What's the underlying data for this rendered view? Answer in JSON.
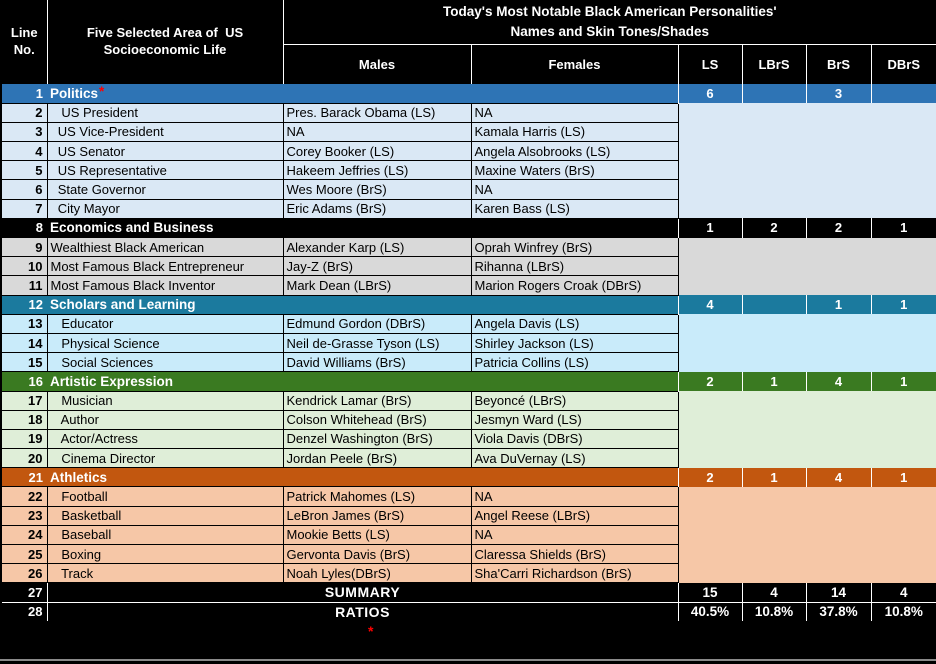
{
  "title": {
    "text": "Today's Most Notable Black American Personalities'\nNames and Skin Tones/Shades"
  },
  "columns": {
    "line_no": "Line\nNo.",
    "area": "Five Selected Area of  US\nSocioeconomic Life",
    "males": "Males",
    "females": "Females",
    "shades": [
      "LS",
      "LBrS",
      "BrS",
      "DBrS"
    ]
  },
  "colors": {
    "politics_header": "#2E74B5",
    "politics_light": "#DAE8F5",
    "economics_header": "#000000",
    "economics_light": "#D9D9D9",
    "scholars_header": "#1B7A9E",
    "scholars_light": "#C9EBFA",
    "artistic_header": "#3A7A21",
    "artistic_light": "#DFEED8",
    "athletics_header": "#C2570F",
    "athletics_light": "#F6C7A7",
    "accent_red": "#FF0000"
  },
  "sections": [
    {
      "line_no": 1,
      "name": "Politics",
      "asterisk": "*",
      "color_key": "politics",
      "counts": [
        "6",
        "",
        "3",
        ""
      ],
      "rows": [
        {
          "line_no": 2,
          "area": "   US President",
          "male": "Pres. Barack Obama (LS)",
          "female": "NA"
        },
        {
          "line_no": 3,
          "area": "  US Vice-President",
          "male": "NA",
          "female": "Kamala Harris (LS)"
        },
        {
          "line_no": 4,
          "area": "  US Senator",
          "male": "Corey Booker (LS)",
          "female": "Angela Alsobrooks (LS)"
        },
        {
          "line_no": 5,
          "area": "  US Representative",
          "male": "Hakeem Jeffries (LS)",
          "female": "Maxine Waters (BrS)"
        },
        {
          "line_no": 6,
          "area": "  State Governor",
          "male": "Wes Moore (BrS)",
          "female": "NA"
        },
        {
          "line_no": 7,
          "area": "  City Mayor",
          "male": "Eric Adams (BrS)",
          "female": "Karen Bass (LS)"
        }
      ]
    },
    {
      "line_no": 8,
      "name": "Economics and Business",
      "asterisk": "",
      "color_key": "economics",
      "counts": [
        "1",
        "2",
        "2",
        "1"
      ],
      "rows": [
        {
          "line_no": 9,
          "area": "Wealthiest Black American",
          "male": "Alexander Karp (LS)",
          "female": "Oprah Winfrey (BrS)"
        },
        {
          "line_no": 10,
          "area": "Most Famous Black Entrepreneur",
          "male": "Jay-Z (BrS)",
          "female": "Rihanna (LBrS)"
        },
        {
          "line_no": 11,
          "area": "Most Famous Black Inventor",
          "male": "Mark Dean (LBrS)",
          "female": "Marion Rogers Croak (DBrS)"
        }
      ]
    },
    {
      "line_no": 12,
      "name": "Scholars and Learning",
      "asterisk": "",
      "color_key": "scholars",
      "counts": [
        "4",
        "",
        "1",
        "1"
      ],
      "rows": [
        {
          "line_no": 13,
          "area": "   Educator",
          "male": "Edmund Gordon (DBrS)",
          "female": "Angela Davis (LS)"
        },
        {
          "line_no": 14,
          "area": "   Physical Science",
          "male": "Neil de-Grasse Tyson (LS)",
          "female": "Shirley Jackson (LS)"
        },
        {
          "line_no": 15,
          "area": "   Social Sciences",
          "male": "David Williams (BrS)",
          "female": "Patricia Collins (LS)"
        }
      ]
    },
    {
      "line_no": 16,
      "name": "Artistic Expression",
      "asterisk": "",
      "color_key": "artistic",
      "counts": [
        "2",
        "1",
        "4",
        "1"
      ],
      "rows": [
        {
          "line_no": 17,
          "area": "   Musician",
          "male": "Kendrick Lamar (BrS)",
          "female": "Beyoncé (LBrS)"
        },
        {
          "line_no": 18,
          "area": "   Author",
          "male": "Colson Whitehead (BrS)",
          "female": "Jesmyn Ward (LS)"
        },
        {
          "line_no": 19,
          "area": "   Actor/Actress",
          "male": "Denzel Washington (BrS)",
          "female": "Viola Davis (DBrS)"
        },
        {
          "line_no": 20,
          "area": "   Cinema Director",
          "male": "Jordan Peele (BrS)",
          "female": "Ava DuVernay (LS)"
        }
      ]
    },
    {
      "line_no": 21,
      "name": "Athletics",
      "asterisk": "",
      "color_key": "athletics",
      "counts": [
        "2",
        "1",
        "4",
        "1"
      ],
      "rows": [
        {
          "line_no": 22,
          "area": "   Football",
          "male": "Patrick Mahomes (LS)",
          "female": "NA"
        },
        {
          "line_no": 23,
          "area": "   Basketball",
          "male": "LeBron James (BrS)",
          "female": "Angel Reese (LBrS)"
        },
        {
          "line_no": 24,
          "area": "   Baseball",
          "male": "Mookie Betts (LS)",
          "female": "NA"
        },
        {
          "line_no": 25,
          "area": "   Boxing",
          "male": "Gervonta Davis (BrS)",
          "female": "Claressa Shields (BrS)"
        },
        {
          "line_no": 26,
          "area": "   Track",
          "male": "Noah Lyles(DBrS)",
          "female": "Sha'Carri Richardson (BrS)"
        }
      ]
    }
  ],
  "summary": {
    "line_no": 27,
    "label": "SUMMARY",
    "counts": [
      "15",
      "4",
      "14",
      "4"
    ]
  },
  "ratios": {
    "line_no": 28,
    "label": "RATIOS",
    "values": [
      "40.5%",
      "10.8%",
      "37.8%",
      "10.8%"
    ]
  },
  "footer": {
    "asterisk": "*"
  }
}
